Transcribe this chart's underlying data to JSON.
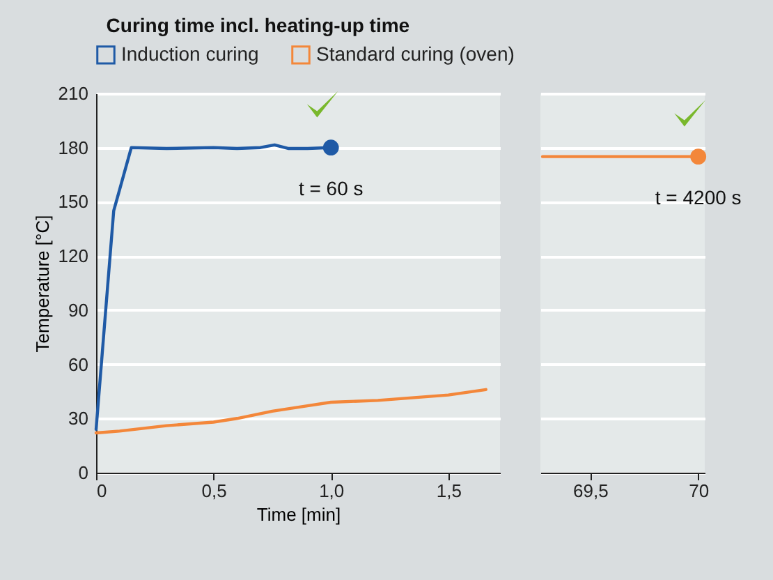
{
  "chart_data": [
    {
      "type": "line",
      "title": "Curing time incl. heating-up time",
      "xlabel": "Time [min]",
      "ylabel": "Temperature [°C]",
      "xlim": [
        0,
        1.72
      ],
      "xticks": [
        0,
        {
          "value": 0.5,
          "label": "0,5"
        },
        {
          "value": 1.0,
          "label": "1,0"
        },
        {
          "value": 1.5,
          "label": "1,5"
        }
      ],
      "ylim": [
        0,
        210
      ],
      "yticks": [
        0,
        30,
        60,
        90,
        120,
        150,
        180,
        210
      ],
      "grid": "y",
      "legend": "top left",
      "annotations": [
        {
          "text": "t = 60 s",
          "x": 1.0,
          "y": 180
        }
      ],
      "series": [
        {
          "name": "Induction curing",
          "color": "#1f5aa6",
          "x": [
            0,
            0.075,
            0.15,
            0.3,
            0.5,
            0.6,
            0.7,
            0.76,
            0.82,
            0.9,
            1.0
          ],
          "values": [
            24,
            145,
            180,
            179.5,
            180,
            179.5,
            180,
            181.5,
            179.5,
            179.5,
            180
          ]
        },
        {
          "name": "Standard curing (oven)",
          "color": "#f3873a",
          "x": [
            0,
            0.1,
            0.3,
            0.5,
            0.6,
            0.75,
            0.9,
            1.0,
            1.2,
            1.5,
            1.66
          ],
          "values": [
            22,
            23,
            26,
            28,
            30,
            34,
            37,
            39,
            40,
            43,
            46
          ]
        },
        {
          "type": "scatter",
          "color": "#1f5aa6",
          "x": [
            1.0
          ],
          "values": [
            180
          ]
        }
      ]
    },
    {
      "type": "line",
      "xlim": [
        69.27,
        70.03
      ],
      "xticks": [
        {
          "value": 69.5,
          "label": "69,5"
        },
        70
      ],
      "ylim": [
        0,
        210
      ],
      "yticks": [
        0,
        30,
        60,
        90,
        120,
        150,
        180,
        210
      ],
      "grid": "y",
      "tick_labels": "x",
      "annotations": [
        {
          "text": "t = 4200 s",
          "x": 70,
          "y": 175
        }
      ],
      "series": [
        {
          "color": "#f3873a",
          "x": [
            69.28,
            70
          ],
          "values": [
            175,
            175
          ]
        },
        {
          "type": "scatter",
          "color": "#f3873a",
          "x": [
            70
          ],
          "values": [
            175
          ]
        }
      ]
    }
  ]
}
